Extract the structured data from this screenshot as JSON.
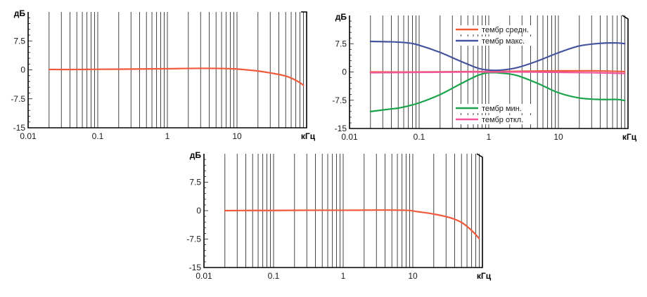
{
  "chart_data": [
    {
      "type": "line",
      "xlabel": "кГц",
      "ylabel": "дБ",
      "xscale": "log",
      "xlim": [
        0.01,
        100
      ],
      "ylim": [
        -15,
        15
      ],
      "xticks": [
        "0.01",
        "0.1",
        "1",
        "10"
      ],
      "yticks": [
        "7.5",
        "0",
        "-7.5",
        "-15"
      ],
      "grid": true,
      "legend": [],
      "series": [
        {
          "name": "",
          "color": "#f05a3c",
          "x": [
            0.02,
            0.05,
            0.1,
            0.3,
            1,
            3,
            8,
            12,
            20,
            35,
            50,
            65,
            80,
            90
          ],
          "y": [
            0.1,
            0.1,
            0.15,
            0.2,
            0.3,
            0.4,
            0.3,
            0.1,
            -0.3,
            -1.0,
            -1.6,
            -2.4,
            -3.3,
            -4.0
          ]
        }
      ]
    },
    {
      "type": "line",
      "xlabel": "кГц",
      "ylabel": "дБ",
      "xscale": "log",
      "xlim": [
        0.01,
        100
      ],
      "ylim": [
        -15,
        15
      ],
      "xticks": [
        "0.01",
        "0.1",
        "1",
        "10"
      ],
      "yticks": [
        "7.5",
        "0",
        "-7.5",
        "-15"
      ],
      "grid": true,
      "legend": [
        "тембр средн.",
        "тембр макс.",
        "тембр мин.",
        "тембр откл."
      ],
      "series": [
        {
          "name": "тембр средн.",
          "color": "#f05a3c",
          "x": [
            0.02,
            0.1,
            0.5,
            1,
            3,
            10,
            30,
            60,
            90
          ],
          "y": [
            0.0,
            0.0,
            0.1,
            0.1,
            0.2,
            0.3,
            0.3,
            0.2,
            0.1
          ]
        },
        {
          "name": "тембр макс.",
          "color": "#46549e",
          "x": [
            0.02,
            0.04,
            0.07,
            0.1,
            0.2,
            0.4,
            0.7,
            1,
            1.5,
            2.5,
            5,
            10,
            20,
            40,
            70,
            90
          ],
          "y": [
            8.1,
            8.0,
            7.7,
            7.1,
            5.2,
            2.8,
            1.0,
            0.5,
            0.5,
            1.1,
            2.9,
            5.1,
            6.9,
            7.6,
            7.7,
            7.5
          ]
        },
        {
          "name": "тембр мин.",
          "color": "#1aa34a",
          "x": [
            0.02,
            0.04,
            0.05,
            0.07,
            0.1,
            0.2,
            0.4,
            0.7,
            1,
            1.5,
            2.5,
            5,
            10,
            20,
            40,
            70,
            90
          ],
          "y": [
            -10.5,
            -9.8,
            -9.6,
            -9.0,
            -8.2,
            -6.0,
            -3.1,
            -0.9,
            -0.2,
            -0.3,
            -0.9,
            -3.0,
            -5.5,
            -6.9,
            -7.3,
            -7.3,
            -7.6
          ]
        },
        {
          "name": "тембр откл.",
          "color": "#f0559e",
          "x": [
            0.02,
            0.1,
            0.5,
            1,
            3,
            10,
            30,
            60,
            90
          ],
          "y": [
            -0.2,
            -0.1,
            0.0,
            0.0,
            0.0,
            -0.1,
            -0.2,
            -0.3,
            -0.4
          ]
        }
      ]
    },
    {
      "type": "line",
      "xlabel": "кГц",
      "ylabel": "дБ",
      "xscale": "log",
      "xlim": [
        0.01,
        100
      ],
      "ylim": [
        -15,
        15
      ],
      "xticks": [
        "0.01",
        "0.1",
        "1",
        "10"
      ],
      "yticks": [
        "7.5",
        "0",
        "-7.5",
        "-15"
      ],
      "grid": true,
      "legend": [],
      "series": [
        {
          "name": "",
          "color": "#f05a3c",
          "x": [
            0.02,
            0.05,
            0.1,
            0.3,
            1,
            3,
            8,
            12,
            20,
            35,
            50,
            65,
            80,
            90
          ],
          "y": [
            0.0,
            0.05,
            0.05,
            0.1,
            0.1,
            0.15,
            0.1,
            -0.3,
            -0.9,
            -1.9,
            -3.1,
            -4.7,
            -6.3,
            -7.4
          ]
        }
      ]
    }
  ]
}
